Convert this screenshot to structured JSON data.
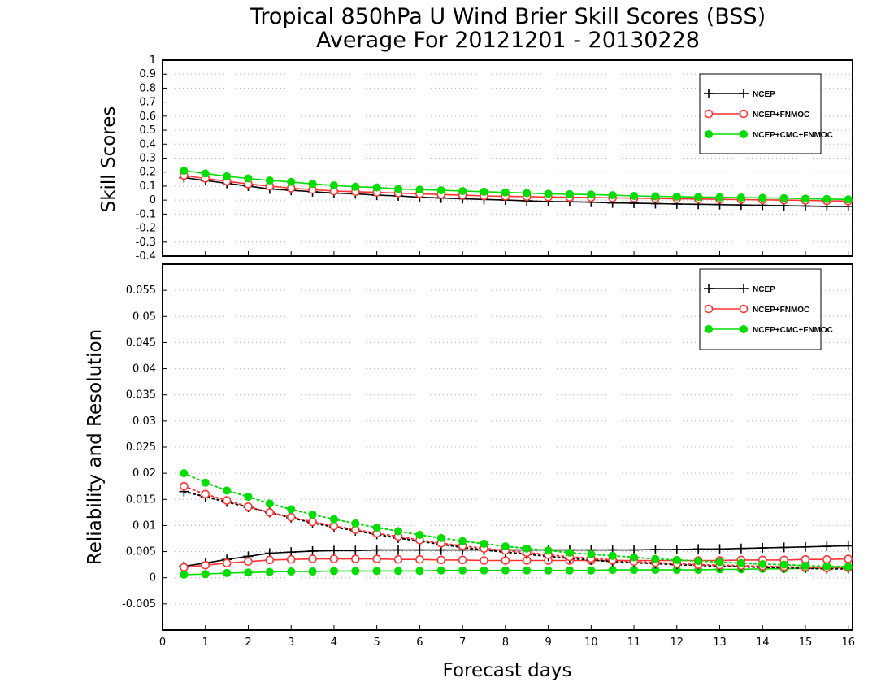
{
  "title": {
    "line1": "Tropical 850hPa U Wind Brier Skill Scores (BSS)",
    "line2": "Average For 20121201 - 20130228"
  },
  "xlabel": "Forecast days",
  "x_ticks": [
    "0",
    "1",
    "2",
    "3",
    "4",
    "5",
    "6",
    "7",
    "8",
    "9",
    "10",
    "11",
    "12",
    "13",
    "14",
    "15",
    "16"
  ],
  "colors": {
    "NCEP": "#000000",
    "NCEP+FNMOC": "#ff3333",
    "NCEP+CMC+FNMOC": "#00dd00"
  },
  "chart_data": [
    {
      "type": "line",
      "ylabel": "Skill Scores",
      "xlim": [
        0,
        16.1
      ],
      "ylim": [
        -0.4,
        1
      ],
      "y_ticks": [
        "1",
        "0.9",
        "0.8",
        "0.7",
        "0.6",
        "0.5",
        "0.4",
        "0.3",
        "0.2",
        "0.1",
        "0",
        "-0.1",
        "-0.2",
        "-0.3",
        "-0.4"
      ],
      "grid": true,
      "legend": "top-right",
      "x": [
        0.5,
        1,
        1.5,
        2,
        2.5,
        3,
        3.5,
        4,
        4.5,
        5,
        5.5,
        6,
        6.5,
        7,
        7.5,
        8,
        8.5,
        9,
        9.5,
        10,
        10.5,
        11,
        11.5,
        12,
        12.5,
        13,
        13.5,
        14,
        14.5,
        15,
        15.5,
        16
      ],
      "series": [
        {
          "name": "NCEP",
          "style": "solid",
          "marker": "plus",
          "values": [
            0.16,
            0.14,
            0.12,
            0.1,
            0.08,
            0.07,
            0.06,
            0.05,
            0.045,
            0.035,
            0.03,
            0.02,
            0.015,
            0.01,
            0.005,
            0.0,
            -0.005,
            -0.01,
            -0.012,
            -0.015,
            -0.02,
            -0.022,
            -0.025,
            -0.028,
            -0.03,
            -0.032,
            -0.035,
            -0.037,
            -0.04,
            -0.042,
            -0.045,
            -0.045
          ]
        },
        {
          "name": "NCEP+FNMOC",
          "style": "solid",
          "marker": "open-circle",
          "values": [
            0.175,
            0.155,
            0.135,
            0.115,
            0.1,
            0.085,
            0.075,
            0.065,
            0.06,
            0.055,
            0.05,
            0.045,
            0.04,
            0.035,
            0.03,
            0.027,
            0.025,
            0.022,
            0.02,
            0.018,
            0.016,
            0.014,
            0.012,
            0.01,
            0.008,
            0.006,
            0.004,
            0.002,
            0.0,
            -0.002,
            -0.005,
            -0.007
          ]
        },
        {
          "name": "NCEP+CMC+FNMOC",
          "style": "solid",
          "marker": "filled-circle",
          "values": [
            0.21,
            0.19,
            0.17,
            0.155,
            0.14,
            0.13,
            0.115,
            0.105,
            0.095,
            0.09,
            0.08,
            0.075,
            0.07,
            0.065,
            0.06,
            0.055,
            0.05,
            0.045,
            0.042,
            0.04,
            0.035,
            0.03,
            0.027,
            0.025,
            0.022,
            0.02,
            0.018,
            0.016,
            0.014,
            0.01,
            0.008,
            0.005
          ]
        }
      ]
    },
    {
      "type": "line",
      "ylabel": "Reliability and Resolution",
      "xlim": [
        0,
        16.1
      ],
      "ylim": [
        -0.01,
        0.06
      ],
      "y_ticks": [
        "0.055",
        "0.05",
        "0.045",
        "0.04",
        "0.035",
        "0.03",
        "0.025",
        "0.02",
        "0.015",
        "0.01",
        "0.005",
        "0",
        "-0.005"
      ],
      "grid": true,
      "legend": "top-right",
      "x": [
        0.5,
        1,
        1.5,
        2,
        2.5,
        3,
        3.5,
        4,
        4.5,
        5,
        5.5,
        6,
        6.5,
        7,
        7.5,
        8,
        8.5,
        9,
        9.5,
        10,
        10.5,
        11,
        11.5,
        12,
        12.5,
        13,
        13.5,
        14,
        14.5,
        15,
        15.5,
        16
      ],
      "series": [
        {
          "name": "NCEP",
          "component": "resolution",
          "style": "solid",
          "marker": "plus",
          "values": [
            0.0022,
            0.0028,
            0.0035,
            0.0041,
            0.0047,
            0.0049,
            0.0051,
            0.0052,
            0.0052,
            0.0053,
            0.0053,
            0.0053,
            0.0053,
            0.0053,
            0.0053,
            0.0053,
            0.0053,
            0.0053,
            0.0053,
            0.0053,
            0.0053,
            0.0053,
            0.0054,
            0.0054,
            0.0055,
            0.0055,
            0.0056,
            0.0057,
            0.0058,
            0.0059,
            0.006,
            0.0061
          ]
        },
        {
          "name": "NCEP+FNMOC",
          "component": "resolution",
          "style": "solid",
          "marker": "open-circle",
          "values": [
            0.002,
            0.0024,
            0.0028,
            0.0031,
            0.0034,
            0.0035,
            0.0036,
            0.0036,
            0.0036,
            0.0036,
            0.0035,
            0.0035,
            0.0034,
            0.0034,
            0.0033,
            0.0033,
            0.0033,
            0.0033,
            0.0033,
            0.0033,
            0.0033,
            0.0033,
            0.0033,
            0.0033,
            0.0033,
            0.0033,
            0.0034,
            0.0034,
            0.0034,
            0.0035,
            0.0035,
            0.0036
          ]
        },
        {
          "name": "NCEP+CMC+FNMOC",
          "component": "resolution",
          "style": "solid",
          "marker": "filled-circle",
          "values": [
            0.0006,
            0.0007,
            0.0009,
            0.001,
            0.0011,
            0.0012,
            0.0012,
            0.0013,
            0.0013,
            0.0013,
            0.0013,
            0.0013,
            0.0014,
            0.0014,
            0.0014,
            0.0014,
            0.0014,
            0.0014,
            0.0014,
            0.0014,
            0.0015,
            0.0015,
            0.0015,
            0.0015,
            0.0015,
            0.0016,
            0.0016,
            0.0017,
            0.0017,
            0.0018,
            0.0018,
            0.0019
          ]
        },
        {
          "name": "NCEP",
          "component": "reliability",
          "style": "dotted",
          "marker": "plus",
          "values": [
            0.0165,
            0.0155,
            0.0145,
            0.0135,
            0.0125,
            0.0115,
            0.0105,
            0.0097,
            0.009,
            0.0083,
            0.0076,
            0.007,
            0.0064,
            0.0058,
            0.0053,
            0.0049,
            0.0045,
            0.0041,
            0.0037,
            0.0034,
            0.0031,
            0.0029,
            0.0027,
            0.0025,
            0.0024,
            0.0022,
            0.0021,
            0.002,
            0.0019,
            0.0018,
            0.0017,
            0.0017
          ]
        },
        {
          "name": "NCEP+FNMOC",
          "component": "reliability",
          "style": "dotted",
          "marker": "open-circle",
          "values": [
            0.0175,
            0.016,
            0.0148,
            0.0136,
            0.0125,
            0.0116,
            0.0107,
            0.0099,
            0.0092,
            0.0085,
            0.0079,
            0.0072,
            0.0066,
            0.0061,
            0.0056,
            0.0052,
            0.0048,
            0.0044,
            0.004,
            0.0037,
            0.0034,
            0.0031,
            0.0029,
            0.0027,
            0.0025,
            0.0024,
            0.0023,
            0.0022,
            0.0021,
            0.002,
            0.0019,
            0.0019
          ]
        },
        {
          "name": "NCEP+CMC+FNMOC",
          "component": "reliability",
          "style": "dotted",
          "marker": "filled-circle",
          "values": [
            0.02,
            0.0182,
            0.0167,
            0.0155,
            0.0142,
            0.0131,
            0.0121,
            0.0112,
            0.0104,
            0.0096,
            0.0089,
            0.0082,
            0.0076,
            0.007,
            0.0065,
            0.006,
            0.0056,
            0.0052,
            0.0048,
            0.0045,
            0.0042,
            0.0039,
            0.0036,
            0.0034,
            0.0032,
            0.003,
            0.0028,
            0.0026,
            0.0025,
            0.0023,
            0.0022,
            0.0021
          ]
        }
      ]
    }
  ]
}
